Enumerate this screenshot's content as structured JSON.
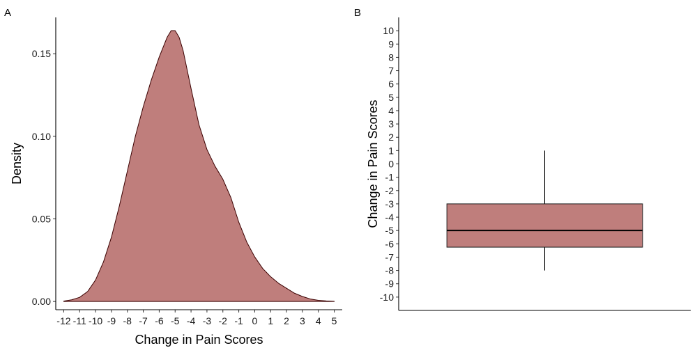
{
  "panel_labels": {
    "a": "A",
    "b": "B"
  },
  "colors": {
    "fill": "#bf7e7c",
    "outline": "#3a0000",
    "axis": "#000000"
  },
  "chart_data": [
    {
      "type": "area",
      "subtype": "density",
      "panel": "A",
      "title": "",
      "xlabel": "Change in Pain Scores",
      "ylabel": "Density",
      "xlim": [
        -12.5,
        5.5
      ],
      "ylim": [
        -0.005,
        0.172
      ],
      "xticks": [
        -12,
        -11,
        -10,
        -9,
        -8,
        -7,
        -6,
        -5,
        -4,
        -3,
        -2,
        -1,
        0,
        1,
        2,
        3,
        4,
        5
      ],
      "xtick_labels": [
        "-12",
        "-11",
        "-10",
        "-9",
        "-8",
        "-7",
        "-6",
        "-5",
        "-4",
        "-3",
        "-2",
        "-1",
        "0",
        "1",
        "2",
        "3",
        "4",
        "5"
      ],
      "yticks": [
        0,
        0.05,
        0.1,
        0.15
      ],
      "ytick_labels": [
        "0.00",
        "0.05",
        "0.10",
        "0.15"
      ],
      "grid": false,
      "x": [
        -12,
        -11.5,
        -11,
        -10.5,
        -10,
        -9.5,
        -9,
        -8.5,
        -8,
        -7.5,
        -7,
        -6.5,
        -6,
        -5.5,
        -5.25,
        -5,
        -4.75,
        -4.5,
        -4,
        -3.5,
        -3,
        -2.5,
        -2,
        -1.5,
        -1,
        -0.5,
        0,
        0.5,
        1,
        1.5,
        2,
        2.5,
        3,
        3.5,
        4,
        4.5,
        5
      ],
      "y": [
        0.0002,
        0.001,
        0.0025,
        0.006,
        0.013,
        0.024,
        0.039,
        0.058,
        0.079,
        0.1,
        0.118,
        0.134,
        0.148,
        0.16,
        0.164,
        0.164,
        0.16,
        0.152,
        0.129,
        0.107,
        0.092,
        0.082,
        0.074,
        0.063,
        0.048,
        0.036,
        0.027,
        0.02,
        0.015,
        0.011,
        0.008,
        0.005,
        0.003,
        0.0015,
        0.0007,
        0.0003,
        0.0001
      ]
    },
    {
      "type": "box",
      "panel": "B",
      "title": "",
      "xlabel": "",
      "ylabel": "Change in Pain Scores",
      "ylim": [
        -11,
        11
      ],
      "yticks": [
        -10,
        -9,
        -8,
        -7,
        -6,
        -5,
        -4,
        -3,
        -2,
        -1,
        0,
        1,
        2,
        3,
        4,
        5,
        6,
        7,
        8,
        9,
        10
      ],
      "ytick_labels": [
        "-10",
        "-9",
        "-8",
        "-7",
        "-6",
        "-5",
        "-4",
        "-3",
        "-2",
        "-1",
        "0",
        "1",
        "2",
        "3",
        "4",
        "5",
        "6",
        "7",
        "8",
        "9",
        "10"
      ],
      "grid": false,
      "box": {
        "whisker_low": -8,
        "q1": -6.25,
        "median": -5,
        "q3": -3,
        "whisker_high": 1
      }
    }
  ]
}
